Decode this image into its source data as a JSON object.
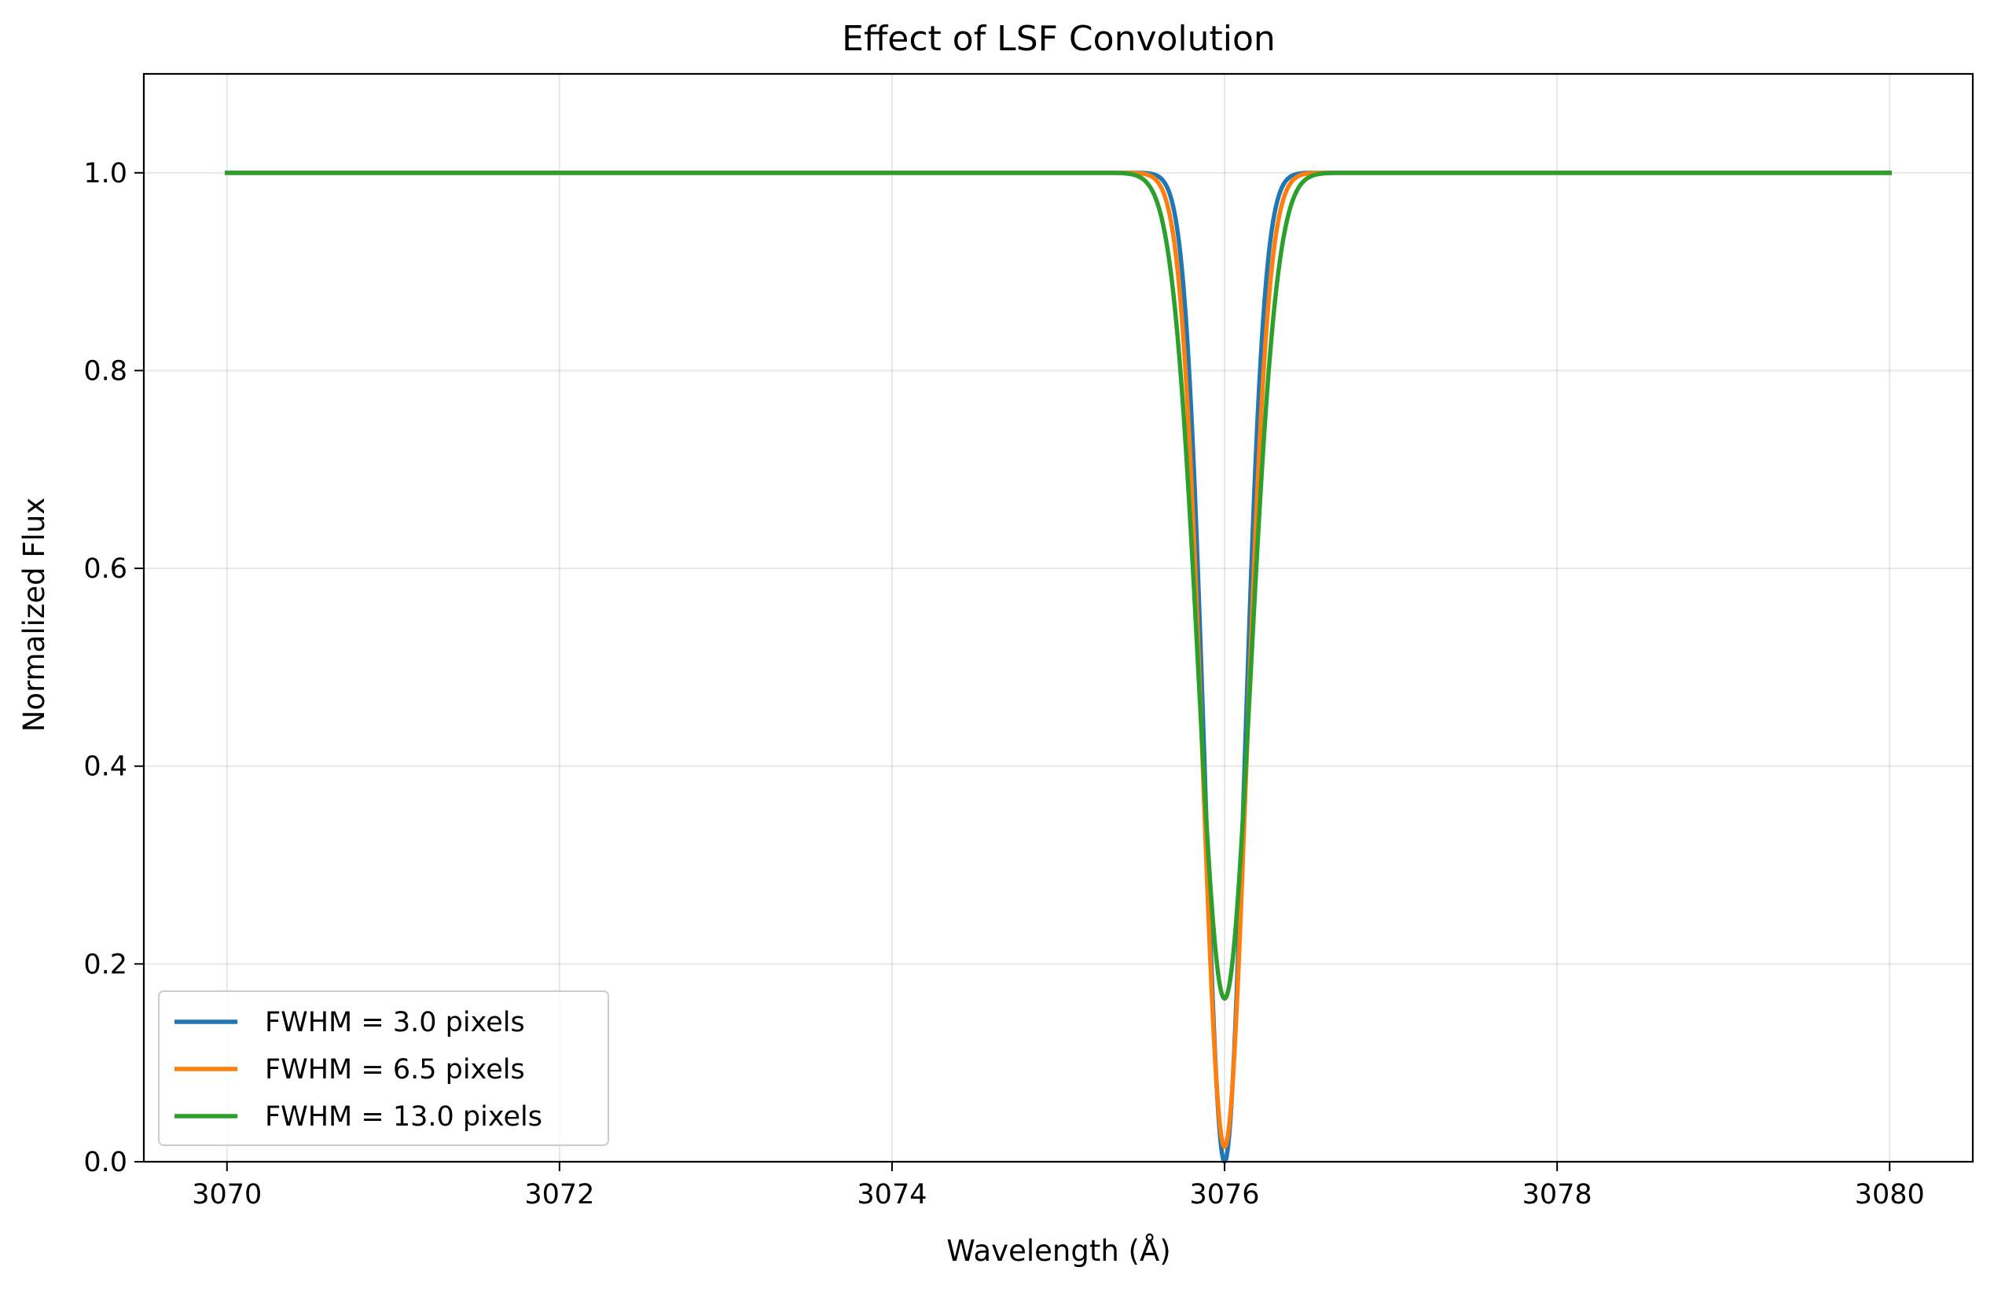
{
  "chart_data": {
    "type": "line",
    "title": "Effect of LSF Convolution",
    "xlabel": "Wavelength (Å)",
    "ylabel": "Normalized Flux",
    "xlim": [
      3069.5,
      3080.5
    ],
    "ylim": [
      0.0,
      1.1
    ],
    "xticks": [
      3070,
      3072,
      3074,
      3076,
      3078,
      3080
    ],
    "xtick_labels": [
      "3070",
      "3072",
      "3074",
      "3076",
      "3078",
      "3080"
    ],
    "yticks": [
      0.0,
      0.2,
      0.4,
      0.6,
      0.8,
      1.0
    ],
    "ytick_labels": [
      "0.0",
      "0.2",
      "0.4",
      "0.6",
      "0.8",
      "1.0"
    ],
    "grid": true,
    "legend_position": "lower-left",
    "x_range": [
      3070,
      3080
    ],
    "line_center": 3076.0,
    "series": [
      {
        "name": "FWHM = 3.0 pixels",
        "color": "#1f77b4",
        "min_flux": 0.0,
        "fwhm_angstrom": 0.28
      },
      {
        "name": "FWHM = 6.5 pixels",
        "color": "#ff7f0e",
        "min_flux": 0.015,
        "fwhm_angstrom": 0.31
      },
      {
        "name": "FWHM = 13.0 pixels",
        "color": "#2ca02c",
        "min_flux": 0.165,
        "fwhm_angstrom": 0.37
      }
    ]
  }
}
